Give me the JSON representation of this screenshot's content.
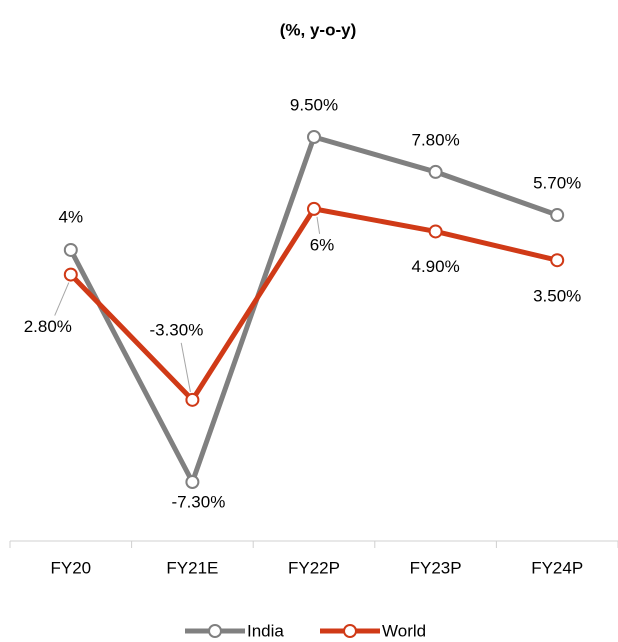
{
  "chart_data": {
    "type": "line",
    "title": "(%, y-o-y)",
    "categories": [
      "FY20",
      "FY21E",
      "FY22P",
      "FY23P",
      "FY24P"
    ],
    "series": [
      {
        "name": "India",
        "color": "#808080",
        "values": [
          4,
          -7.3,
          9.5,
          7.8,
          5.7
        ],
        "value_labels": [
          "4%",
          "-7.30%",
          "9.50%",
          "7.80%",
          "5.70%"
        ]
      },
      {
        "name": "World",
        "color": "#d03a17",
        "values": [
          2.8,
          -3.3,
          6,
          4.9,
          3.5
        ],
        "value_labels": [
          "2.80%",
          "-3.30%",
          "6%",
          "4.90%",
          "3.50%"
        ]
      }
    ]
  }
}
